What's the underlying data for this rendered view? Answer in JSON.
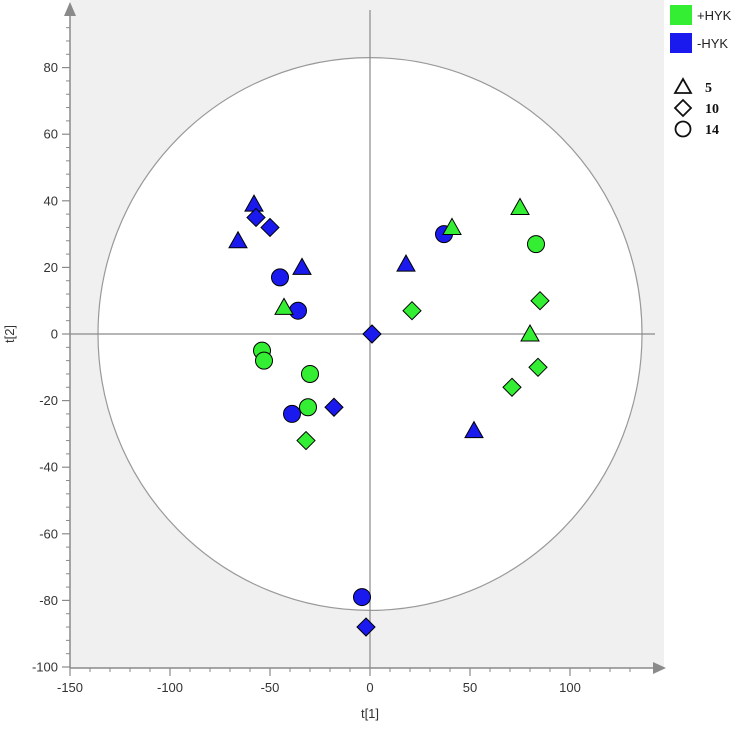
{
  "chart_data": {
    "type": "scatter",
    "title": "",
    "xlabel": "t[1]",
    "ylabel": "t[2]",
    "xlim": [
      -150,
      150
    ],
    "ylim": [
      -100,
      100
    ],
    "x_ticks": [
      -150,
      -100,
      -50,
      0,
      50,
      100
    ],
    "y_ticks": [
      -100,
      -80,
      -60,
      -40,
      -20,
      0,
      20,
      40,
      60,
      80
    ],
    "x_tick_labels": [
      "-150",
      "-100",
      "-50",
      "0",
      "50",
      "100"
    ],
    "y_tick_labels": [
      "-100",
      "-80",
      "-60",
      "-40",
      "-20",
      "0",
      "20",
      "40",
      "60",
      "80"
    ],
    "plot_background": "#f0f0f0",
    "confidence_ellipse": {
      "cx": 0,
      "cy": 0,
      "rx": 136,
      "ry": 83
    },
    "legend_position": "top-right",
    "groups": [
      {
        "name": "+HYK",
        "color": "#33ee33"
      },
      {
        "name": "-HYK",
        "color": "#1a1aee"
      }
    ],
    "shapes": [
      {
        "label": "5",
        "shape": "triangle"
      },
      {
        "label": "10",
        "shape": "diamond"
      },
      {
        "label": "14",
        "shape": "circle"
      }
    ],
    "series": [
      {
        "group": "-HYK",
        "points": [
          {
            "x": -58,
            "y": 39,
            "shape": "triangle"
          },
          {
            "x": -66,
            "y": 28,
            "shape": "triangle"
          },
          {
            "x": -34,
            "y": 20,
            "shape": "triangle"
          },
          {
            "x": 18,
            "y": 21,
            "shape": "triangle"
          },
          {
            "x": 52,
            "y": -29,
            "shape": "triangle"
          },
          {
            "x": -57,
            "y": 35,
            "shape": "diamond"
          },
          {
            "x": -50,
            "y": 32,
            "shape": "diamond"
          },
          {
            "x": 1,
            "y": 0,
            "shape": "diamond"
          },
          {
            "x": -18,
            "y": -22,
            "shape": "diamond"
          },
          {
            "x": -2,
            "y": -88,
            "shape": "diamond"
          },
          {
            "x": -45,
            "y": 17,
            "shape": "circle"
          },
          {
            "x": -36,
            "y": 7,
            "shape": "circle"
          },
          {
            "x": -39,
            "y": -24,
            "shape": "circle"
          },
          {
            "x": 37,
            "y": 30,
            "shape": "circle"
          },
          {
            "x": -4,
            "y": -79,
            "shape": "circle"
          }
        ]
      },
      {
        "group": "+HYK",
        "points": [
          {
            "x": 41,
            "y": 32,
            "shape": "triangle"
          },
          {
            "x": 75,
            "y": 38,
            "shape": "triangle"
          },
          {
            "x": -43,
            "y": 8,
            "shape": "triangle"
          },
          {
            "x": 80,
            "y": 0,
            "shape": "triangle"
          },
          {
            "x": 21,
            "y": 7,
            "shape": "diamond"
          },
          {
            "x": 85,
            "y": 10,
            "shape": "diamond"
          },
          {
            "x": 71,
            "y": -16,
            "shape": "diamond"
          },
          {
            "x": 84,
            "y": -10,
            "shape": "diamond"
          },
          {
            "x": -32,
            "y": -32,
            "shape": "diamond"
          },
          {
            "x": 83,
            "y": 27,
            "shape": "circle"
          },
          {
            "x": -54,
            "y": -5,
            "shape": "circle"
          },
          {
            "x": -53,
            "y": -8,
            "shape": "circle"
          },
          {
            "x": -30,
            "y": -12,
            "shape": "circle"
          },
          {
            "x": -31,
            "y": -22,
            "shape": "circle"
          }
        ]
      }
    ]
  }
}
